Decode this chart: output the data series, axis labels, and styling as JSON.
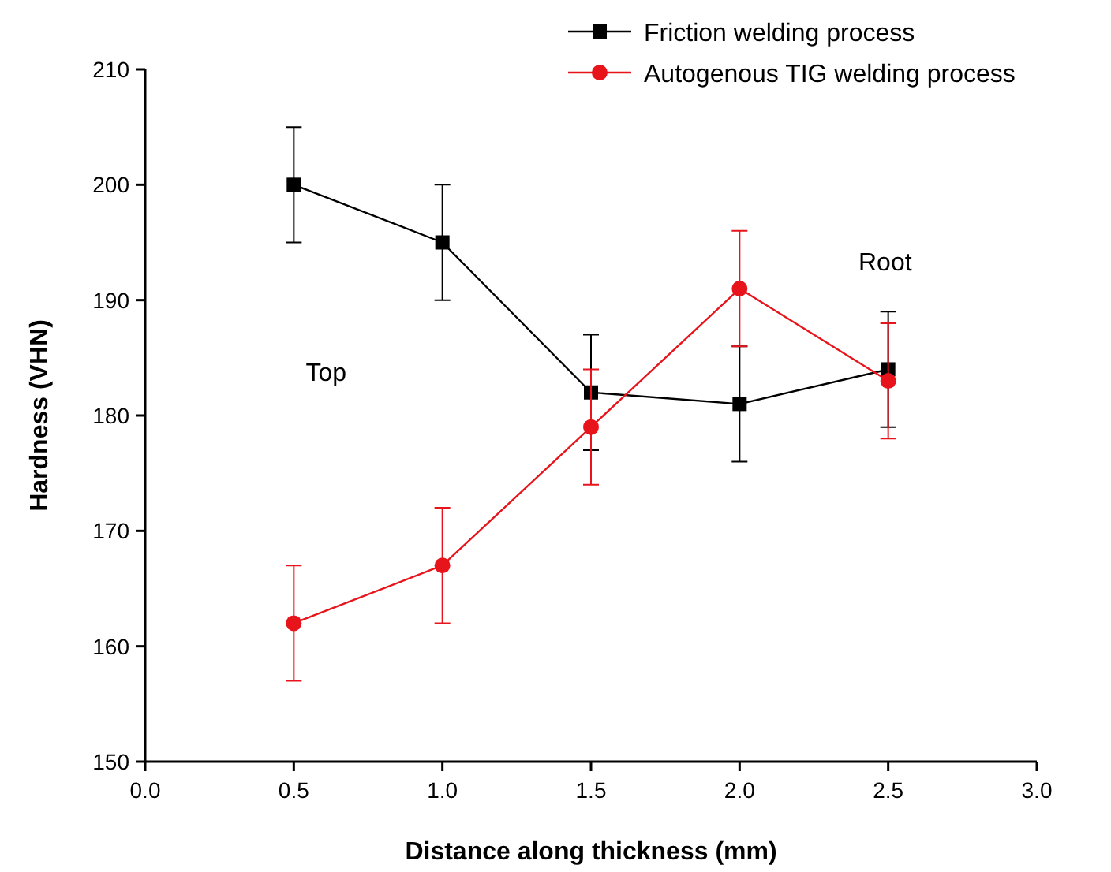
{
  "chart_data": {
    "type": "line",
    "xlabel": "Distance along thickness (mm)",
    "ylabel": "Hardness (VHN)",
    "x": [
      0.5,
      1.0,
      1.5,
      2.0,
      2.5
    ],
    "series": [
      {
        "name": "Friction welding process",
        "color": "#000000",
        "marker": "square",
        "values": [
          200,
          195,
          182,
          181,
          184
        ],
        "errors": [
          5,
          5,
          5,
          5,
          5
        ]
      },
      {
        "name": "Autogenous TIG welding process",
        "color": "#e8141b",
        "marker": "circle",
        "values": [
          162,
          167,
          179,
          191,
          183
        ],
        "errors": [
          5,
          5,
          5,
          5,
          5
        ]
      }
    ],
    "xlim": [
      0,
      3
    ],
    "xticks": [
      {
        "value": 0,
        "label": "0.0"
      },
      {
        "value": 0.5,
        "label": "0.5"
      },
      {
        "value": 1,
        "label": "1.0"
      },
      {
        "value": 1.5,
        "label": "1.5"
      },
      {
        "value": 2,
        "label": "2.0"
      },
      {
        "value": 2.5,
        "label": "2.5"
      },
      {
        "value": 3,
        "label": "3.0"
      }
    ],
    "ylim": [
      150,
      210
    ],
    "yticks": [
      150,
      160,
      170,
      180,
      190,
      200,
      210
    ],
    "legend": "top right",
    "grid": false,
    "annotations": [
      "Top",
      "Root"
    ]
  }
}
